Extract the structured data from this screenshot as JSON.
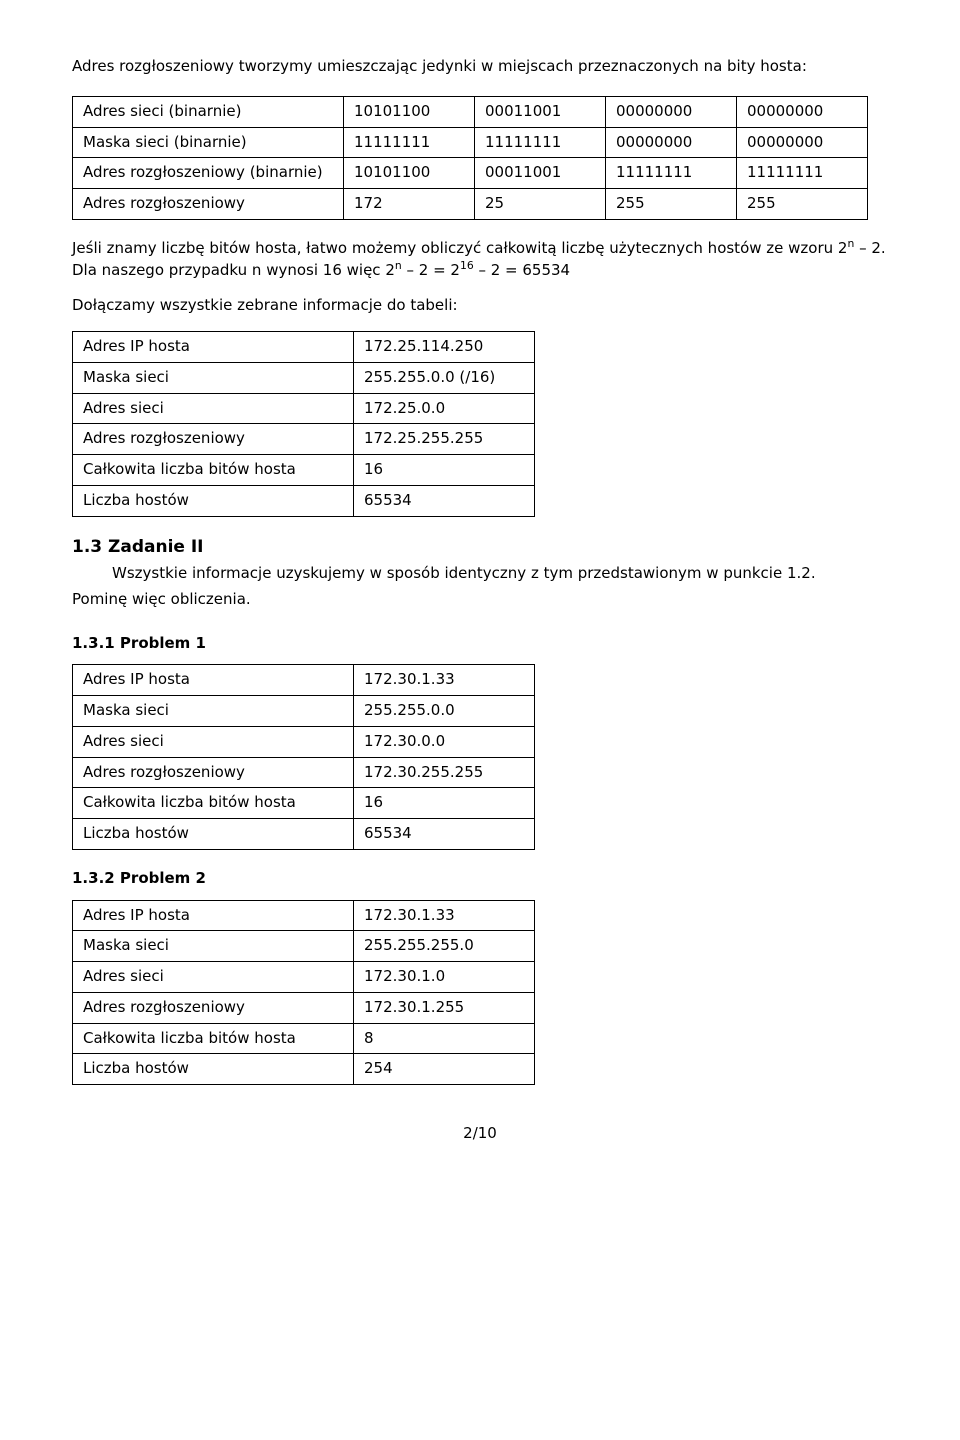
{
  "intro_line": "Adres rozgłoszeniowy tworzymy umieszczając jedynki w miejscach przeznaczonych na bity hosta:",
  "bin_table": {
    "rows": [
      {
        "label": "Adres sieci (binarnie)",
        "c1": "10101100",
        "c2": "00011001",
        "c3": "00000000",
        "c4": "00000000"
      },
      {
        "label": "Maska sieci (binarnie)",
        "c1": "11111111",
        "c2": "11111111",
        "c3": "00000000",
        "c4": "00000000"
      },
      {
        "label": "Adres rozgłoszeniowy (binarnie)",
        "c1": "10101100",
        "c2": "00011001",
        "c3": "11111111",
        "c4": "11111111"
      },
      {
        "label": "Adres rozgłoszeniowy",
        "c1": "172",
        "c2": "25",
        "c3": "255",
        "c4": "255"
      }
    ]
  },
  "formula_pre": "Jeśli znamy liczbę bitów hosta, łatwo możemy obliczyć całkowitą liczbę użytecznych hostów ze wzoru 2",
  "formula_suffix": " – 2. Dla naszego przypadku n wynosi 16 więc 2",
  "formula_mid2": " – 2 = 2",
  "formula_end": " – 2 = 65534",
  "exp_n": "n",
  "exp_16": "16",
  "collect_line": "Dołączamy wszystkie zebrane informacje do tabeli:",
  "summary1": {
    "rows": [
      {
        "label": "Adres IP hosta",
        "val": "172.25.114.250"
      },
      {
        "label": "Maska sieci",
        "val": "255.255.0.0 (/16)"
      },
      {
        "label": "Adres sieci",
        "val": "172.25.0.0"
      },
      {
        "label": "Adres rozgłoszeniowy",
        "val": "172.25.255.255"
      },
      {
        "label": "Całkowita liczba bitów hosta",
        "val": "16"
      },
      {
        "label": "Liczba hostów",
        "val": "65534"
      }
    ]
  },
  "task2_heading": "1.3 Zadanie II",
  "task2_para": "Wszystkie informacje uzyskujemy w sposób identyczny z tym przedstawionym w punkcie 1.2. Pominę więc obliczenia.",
  "task2_para_line1": "Wszystkie informacje uzyskujemy w sposób identyczny z tym przedstawionym w punkcie 1.2.",
  "task2_para_line2": "Pominę więc obliczenia.",
  "p1_heading": "1.3.1 Problem 1",
  "summary_p1": {
    "rows": [
      {
        "label": "Adres IP hosta",
        "val": "172.30.1.33"
      },
      {
        "label": "Maska sieci",
        "val": "255.255.0.0"
      },
      {
        "label": "Adres sieci",
        "val": "172.30.0.0"
      },
      {
        "label": "Adres rozgłoszeniowy",
        "val": "172.30.255.255"
      },
      {
        "label": "Całkowita liczba bitów hosta",
        "val": "16"
      },
      {
        "label": "Liczba hostów",
        "val": "65534"
      }
    ]
  },
  "p2_heading": "1.3.2 Problem 2",
  "summary_p2": {
    "rows": [
      {
        "label": "Adres IP hosta",
        "val": "172.30.1.33"
      },
      {
        "label": "Maska sieci",
        "val": "255.255.255.0"
      },
      {
        "label": "Adres sieci",
        "val": "172.30.1.0"
      },
      {
        "label": "Adres rozgłoszeniowy",
        "val": "172.30.1.255"
      },
      {
        "label": "Całkowita liczba bitów hosta",
        "val": "8"
      },
      {
        "label": "Liczba hostów",
        "val": "254"
      }
    ]
  },
  "page_footer": "2/10"
}
